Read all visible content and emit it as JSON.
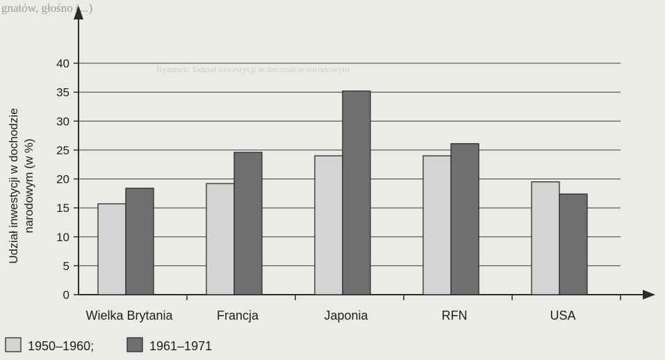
{
  "page_header": "gnatów, głośno (...)",
  "faint_caption": "Rysunek: Udział inwestycji w dochodzie narodowym",
  "chart_data": {
    "type": "bar",
    "title": "",
    "xlabel": "",
    "ylabel": "Udział inwestycji w dochodzie narodowym (w %)",
    "ylabel_lines": [
      "Udział inwestycji w dochodzie",
      "narodowym (w %)"
    ],
    "categories": [
      "Wielka Brytania",
      "Francja",
      "Japonia",
      "RFN",
      "USA"
    ],
    "series": [
      {
        "name": "1950–1960;",
        "values": [
          15.7,
          19.2,
          24.0,
          24.0,
          19.5
        ],
        "color": "#d4d4d2"
      },
      {
        "name": "1961–1971",
        "values": [
          18.4,
          24.6,
          35.2,
          26.1,
          17.4
        ],
        "color": "#6f6f6f"
      }
    ],
    "ylim": [
      0,
      40
    ],
    "yticks": [
      0,
      5,
      10,
      15,
      20,
      25,
      30,
      35,
      40
    ],
    "grid": true,
    "legend_position": "bottom-left"
  }
}
